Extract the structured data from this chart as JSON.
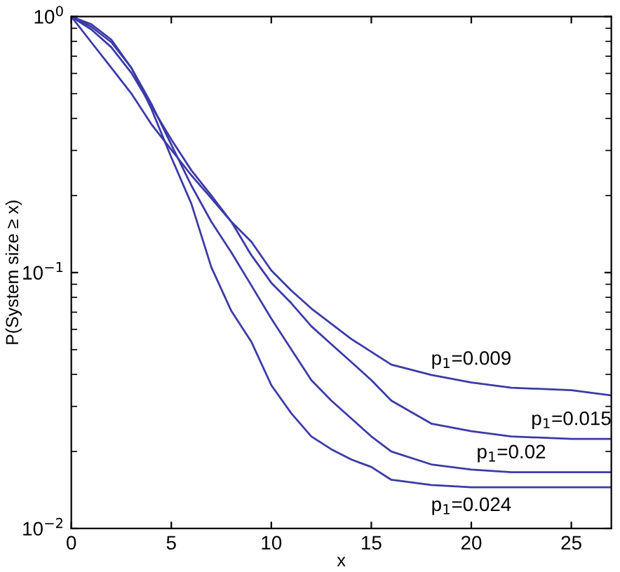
{
  "chart_data": {
    "type": "line",
    "xlabel": "x",
    "ylabel": "P(System size ≥ x)",
    "log": "y",
    "grid": false,
    "legend": false,
    "marker": "none",
    "line_style": "solid",
    "x": [
      0,
      1,
      2,
      3,
      4,
      5,
      6,
      7,
      8,
      9,
      10,
      11,
      12,
      13,
      14,
      15,
      16,
      18,
      20,
      22,
      25,
      27
    ],
    "series": [
      {
        "name": "p$_{1}$=0.009",
        "color": "#3b3ba8",
        "values": [
          1,
          0.794,
          0.631,
          0.501,
          0.38,
          0.302,
          0.24,
          0.195,
          0.158,
          0.132,
          0.102,
          0.0851,
          0.0724,
          0.0631,
          0.055,
          0.049,
          0.0437,
          0.0398,
          0.0372,
          0.0355,
          0.0347,
          0.0331
        ]
      },
      {
        "name": "p$_{1}$=0.015",
        "color": "#3b3ba8",
        "values": [
          1,
          0.891,
          0.759,
          0.603,
          0.447,
          0.331,
          0.251,
          0.2,
          0.158,
          0.117,
          0.0912,
          0.0759,
          0.0617,
          0.0525,
          0.0447,
          0.038,
          0.0316,
          0.0257,
          0.024,
          0.0229,
          0.0224,
          0.0224
        ]
      },
      {
        "name": "p$_{1}$=0.02",
        "color": "#3b3ba8",
        "values": [
          1,
          0.912,
          0.794,
          0.631,
          0.457,
          0.316,
          0.219,
          0.158,
          0.12,
          0.0891,
          0.0661,
          0.0501,
          0.038,
          0.0316,
          0.0269,
          0.0229,
          0.02,
          0.0178,
          0.017,
          0.0166,
          0.0166,
          0.0166
        ]
      },
      {
        "name": "p$_{1}$=0.024",
        "color": "#3b3ba8",
        "values": [
          1,
          0.933,
          0.813,
          0.631,
          0.437,
          0.282,
          0.186,
          0.105,
          0.0708,
          0.0537,
          0.0363,
          0.0282,
          0.0229,
          0.0204,
          0.0186,
          0.0174,
          0.0155,
          0.0148,
          0.0145,
          0.0145,
          0.0145,
          0.0145
        ]
      }
    ],
    "xlim": [
      0,
      27
    ],
    "xticks": [
      0,
      5,
      10,
      15,
      20,
      25
    ],
    "ylim": [
      0.01,
      1
    ],
    "yticks": [
      {
        "value": 0.01,
        "label": "10$^{−2}$"
      },
      {
        "value": 0.1,
        "label": "10$^{−1}$"
      },
      {
        "value": 1,
        "label": "10$^{0}$"
      }
    ]
  }
}
